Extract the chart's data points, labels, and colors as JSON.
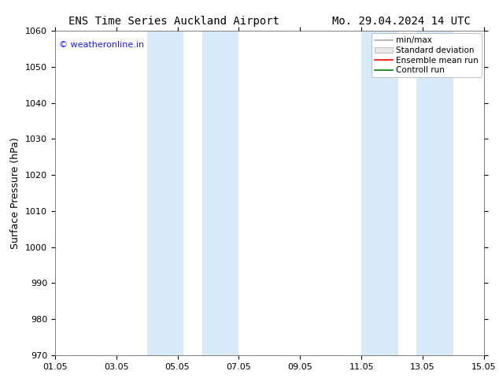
{
  "title_left": "ENS Time Series Auckland Airport",
  "title_right": "Mo. 29.04.2024 14 UTC",
  "ylabel": "Surface Pressure (hPa)",
  "ylim": [
    970,
    1060
  ],
  "yticks": [
    970,
    980,
    990,
    1000,
    1010,
    1020,
    1030,
    1040,
    1050,
    1060
  ],
  "xlim": [
    0,
    14
  ],
  "xtick_positions": [
    0,
    2,
    4,
    6,
    8,
    10,
    12,
    14
  ],
  "xtick_labels": [
    "01.05",
    "03.05",
    "05.05",
    "07.05",
    "09.05",
    "11.05",
    "13.05",
    "15.05"
  ],
  "shade_bands": [
    {
      "start": 3.0,
      "end": 4.2
    },
    {
      "start": 4.8,
      "end": 6.0
    },
    {
      "start": 10.0,
      "end": 11.2
    },
    {
      "start": 11.8,
      "end": 13.0
    }
  ],
  "shade_color": "#d6eaf8",
  "watermark": "© weatheronline.in",
  "watermark_color": "#1a1aff",
  "legend_labels": [
    "min/max",
    "Standard deviation",
    "Ensemble mean run",
    "Controll run"
  ],
  "legend_line_colors": [
    "#aaaaaa",
    "#cccccc",
    "#ff0000",
    "#008000"
  ],
  "background_color": "#ffffff",
  "title_fontsize": 10,
  "ylabel_fontsize": 9,
  "tick_fontsize": 8,
  "legend_fontsize": 7.5,
  "watermark_fontsize": 8
}
